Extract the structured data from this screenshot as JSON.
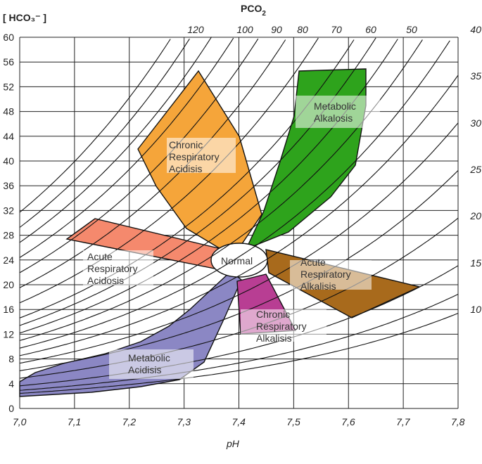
{
  "header": {
    "y_title": "[ HCO₃⁻ ]",
    "pco2_title": "PCO",
    "pco2_sub": "2"
  },
  "x_axis": {
    "title": "pH",
    "ticks": [
      "7,0",
      "7,1",
      "7,2",
      "7,3",
      "7,4",
      "7,5",
      "7,6",
      "7,7",
      "7,8"
    ]
  },
  "y_axis": {
    "ticks": [
      "0",
      "4",
      "8",
      "12",
      "16",
      "20",
      "24",
      "28",
      "32",
      "36",
      "40",
      "44",
      "48",
      "52",
      "56",
      "60"
    ]
  },
  "top_pco2_labels": [
    "120",
    "100",
    "90",
    "80",
    "70",
    "60",
    "50"
  ],
  "right_pco2_labels": [
    "40",
    "35",
    "30",
    "25",
    "20",
    "15",
    "10"
  ],
  "regions": {
    "chronic_resp_acidosis": {
      "line1": "Chronic",
      "line2": "Respiratory",
      "line3": "Acidisis",
      "color": "#f5a53a"
    },
    "metabolic_alkalosis": {
      "line1": "Metabolic",
      "line2": "Alkalosis",
      "color": "#2ea31c"
    },
    "acute_resp_acidosis": {
      "line1": "Acute",
      "line2": "Respiratory",
      "line3": "Acidosis",
      "color": "#f5896d"
    },
    "normal": {
      "label": "Normal",
      "color": "#ffffff"
    },
    "acute_resp_alkalisis": {
      "line1": "Acute",
      "line2": "Respiratory",
      "line3": "Alkalisis",
      "color": "#a86a1c"
    },
    "chronic_resp_alkalisis": {
      "line1": "Chronic",
      "line2": "Respiratory",
      "line3": "Alkalisis",
      "color": "#b83e93"
    },
    "metabolic_acidosis": {
      "line1": "Metabolic",
      "line2": "Acidisis",
      "color": "#8b87c4"
    }
  }
}
